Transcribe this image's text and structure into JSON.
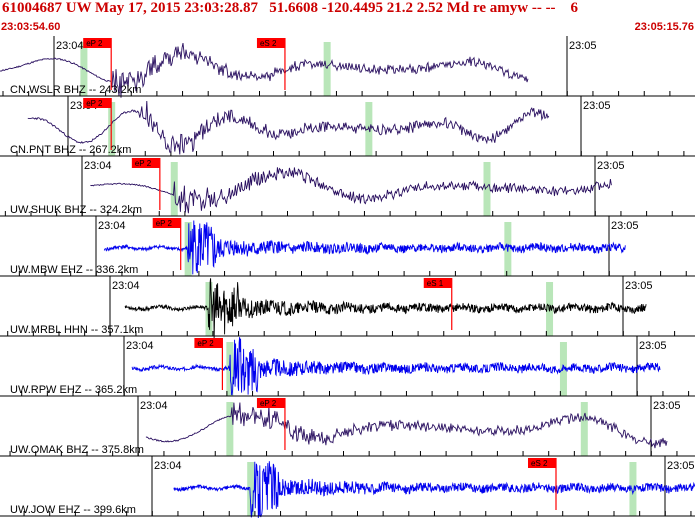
{
  "header": {
    "title": "61004687 UW May 17, 2015 23:03:28.87   51.6608 -120.4495 21.2 2.52 Md re amyw -- --    6",
    "start_time": "23:03:54.60",
    "end_time": "23:05:15.76"
  },
  "colors": {
    "header_text": "#cc0000",
    "pick": "#ff0000",
    "window": "#b9e6b9",
    "trace_bhz": "#2a1060",
    "trace_ehz": "#0000ee",
    "trace_hhn": "#000000",
    "grid": "#000000"
  },
  "time_labels": [
    "23:04",
    "23:05"
  ],
  "traces": [
    {
      "label": "CN.WSLR BHZ -- 243.2km",
      "pick": "eS 2",
      "alt_pick": "eP 2",
      "kind": "bhz",
      "start": 0.0,
      "end": 0.76,
      "onset": 0.16,
      "pick_t": 0.41,
      "pick2_t": 0.16,
      "seed": 11,
      "amp": 0.55,
      "period": 22,
      "noise": 0.25,
      "win": [
        0.12,
        0.47
      ]
    },
    {
      "label": "CN.PNT BHZ -- 267.2km",
      "pick": "eP 2",
      "kind": "bhz",
      "start": 0.04,
      "end": 0.79,
      "onset": 0.2,
      "pick_t": 0.16,
      "seed": 23,
      "amp": 0.6,
      "period": 16,
      "noise": 0.35,
      "win": [
        0.16,
        0.53
      ]
    },
    {
      "label": "UW.SHUK BHZ -- 324.2km",
      "pick": "eP 2",
      "kind": "bhz",
      "start": 0.13,
      "end": 0.88,
      "onset": 0.25,
      "pick_t": 0.23,
      "seed": 37,
      "amp": 0.55,
      "period": 28,
      "noise": 0.2,
      "win": [
        0.25,
        0.7
      ]
    },
    {
      "label": "UW.MBW EHZ -- 336.2km",
      "pick": "eP 2",
      "kind": "ehz",
      "start": 0.15,
      "end": 0.9,
      "onset": 0.27,
      "pick_t": 0.26,
      "seed": 41,
      "amp": 0.3,
      "period": 6,
      "noise": 1.0,
      "win": [
        0.27,
        0.73
      ]
    },
    {
      "label": "UW.MRBL HHN -- 357.1km",
      "pick": "eS 1",
      "kind": "hhn",
      "start": 0.18,
      "end": 0.93,
      "onset": 0.3,
      "pick_t": 0.65,
      "seed": 53,
      "amp": 0.3,
      "period": 6,
      "noise": 1.0,
      "win": [
        0.3,
        0.79
      ]
    },
    {
      "label": "UW.RPW EHZ -- 365.2km",
      "pick": "eP 2",
      "kind": "ehz",
      "start": 0.19,
      "end": 0.95,
      "onset": 0.33,
      "pick_t": 0.32,
      "seed": 67,
      "amp": 0.35,
      "period": 6,
      "noise": 1.0,
      "win": [
        0.33,
        0.81
      ]
    },
    {
      "label": "UW.OMAK BHZ -- 375.8km",
      "pick": "eP 2",
      "kind": "bhz",
      "start": 0.21,
      "end": 0.96,
      "onset": 0.33,
      "pick_t": 0.41,
      "seed": 79,
      "amp": 0.55,
      "period": 26,
      "noise": 0.25,
      "win": [
        0.33,
        0.84
      ]
    },
    {
      "label": "UW.JOW EHZ -- 399.6km",
      "pick": "eS 2",
      "kind": "ehz",
      "start": 0.25,
      "end": 1.0,
      "onset": 0.36,
      "pick_t": 0.8,
      "seed": 89,
      "amp": 0.3,
      "period": 6,
      "noise": 1.0,
      "win": [
        0.36,
        0.91
      ]
    }
  ]
}
